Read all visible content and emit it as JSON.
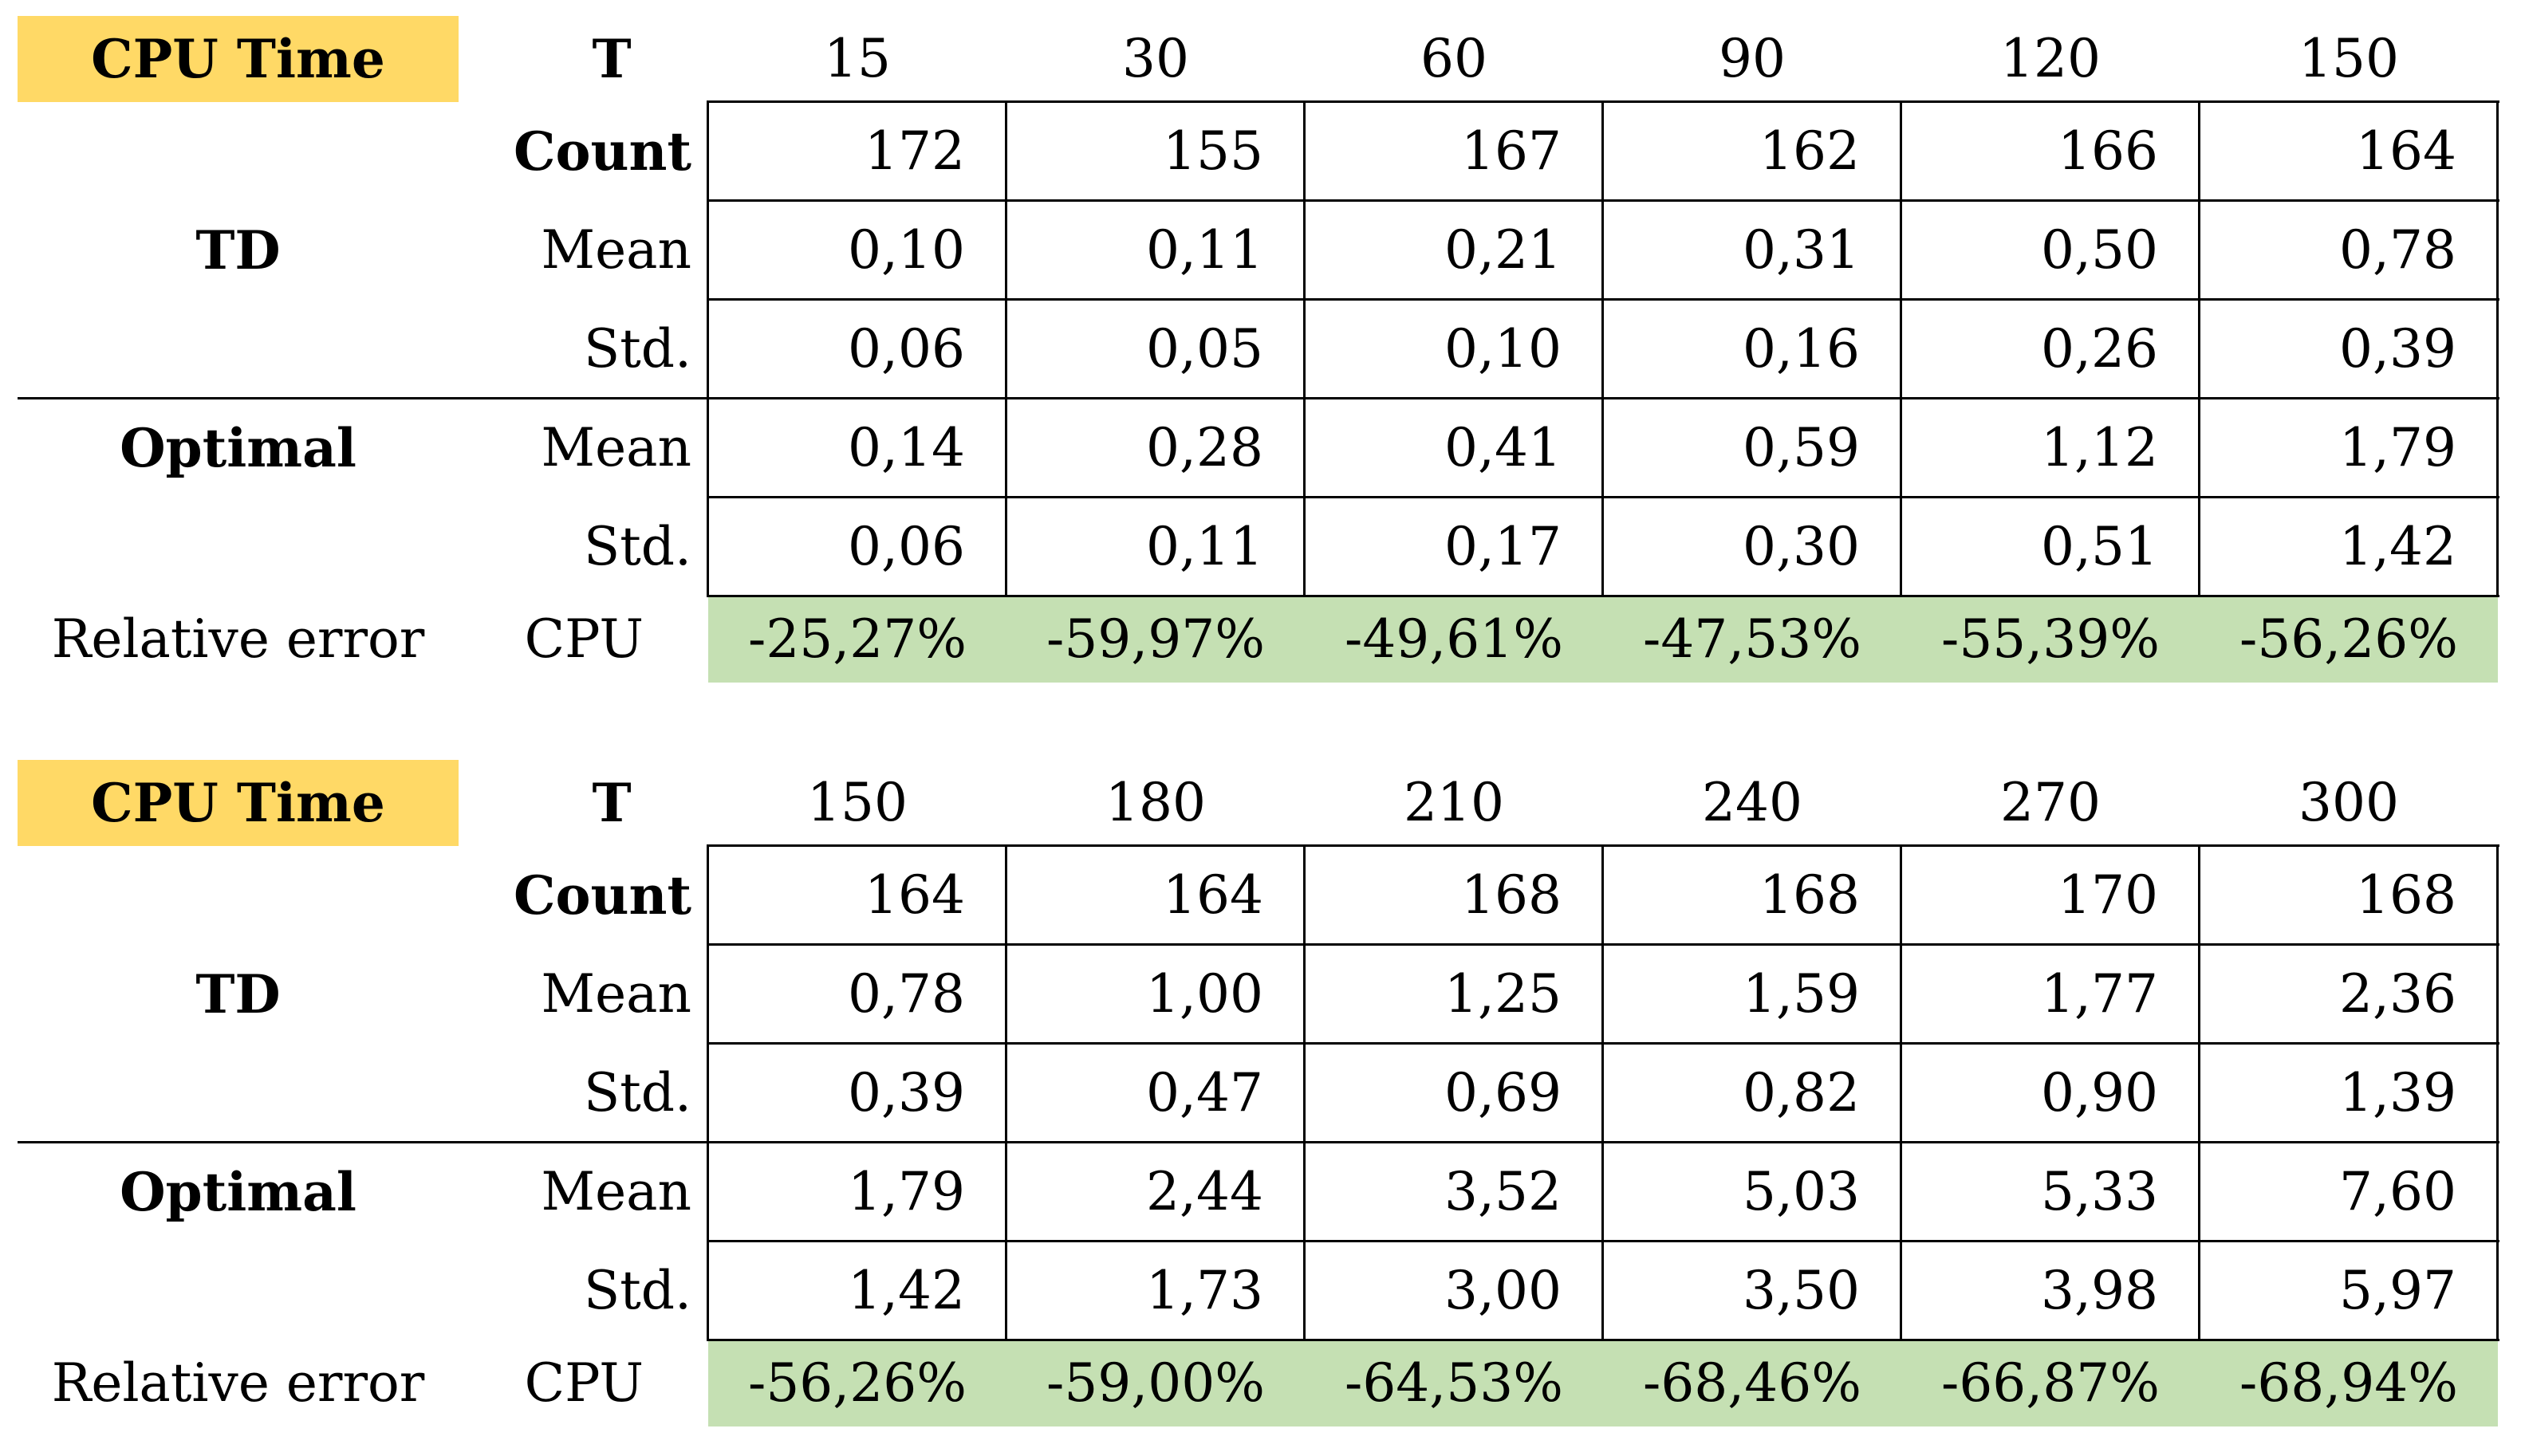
{
  "tables": [
    {
      "badge": "CPU Time",
      "t_label": "T",
      "t_values": [
        "15",
        "30",
        "60",
        "90",
        "120",
        "150"
      ],
      "td": {
        "label": "TD",
        "count_label": "Count",
        "count": [
          "172",
          "155",
          "167",
          "162",
          "166",
          "164"
        ],
        "mean_label": "Mean",
        "mean": [
          "0,10",
          "0,11",
          "0,21",
          "0,31",
          "0,50",
          "0,78"
        ],
        "std_label": "Std.",
        "std": [
          "0,06",
          "0,05",
          "0,10",
          "0,16",
          "0,26",
          "0,39"
        ]
      },
      "optimal": {
        "label": "Optimal",
        "mean_label": "Mean",
        "mean": [
          "0,14",
          "0,28",
          "0,41",
          "0,59",
          "1,12",
          "1,79"
        ],
        "std_label": "Std.",
        "std": [
          "0,06",
          "0,11",
          "0,17",
          "0,30",
          "0,51",
          "1,42"
        ]
      },
      "relative_error": {
        "label": "Relative error",
        "cpu_label": "CPU",
        "values": [
          "-25,27%",
          "-59,97%",
          "-49,61%",
          "-47,53%",
          "-55,39%",
          "-56,26%"
        ]
      }
    },
    {
      "badge": "CPU Time",
      "t_label": "T",
      "t_values": [
        "150",
        "180",
        "210",
        "240",
        "270",
        "300"
      ],
      "td": {
        "label": "TD",
        "count_label": "Count",
        "count": [
          "164",
          "164",
          "168",
          "168",
          "170",
          "168"
        ],
        "mean_label": "Mean",
        "mean": [
          "0,78",
          "1,00",
          "1,25",
          "1,59",
          "1,77",
          "2,36"
        ],
        "std_label": "Std.",
        "std": [
          "0,39",
          "0,47",
          "0,69",
          "0,82",
          "0,90",
          "1,39"
        ]
      },
      "optimal": {
        "label": "Optimal",
        "mean_label": "Mean",
        "mean": [
          "1,79",
          "2,44",
          "3,52",
          "5,03",
          "5,33",
          "7,60"
        ],
        "std_label": "Std.",
        "std": [
          "1,42",
          "1,73",
          "3,00",
          "3,50",
          "3,98",
          "5,97"
        ]
      },
      "relative_error": {
        "label": "Relative error",
        "cpu_label": "CPU",
        "values": [
          "-56,26%",
          "-59,00%",
          "-64,53%",
          "-68,46%",
          "-66,87%",
          "-68,94%"
        ]
      }
    }
  ],
  "colors": {
    "badge_fill": "#FFD966",
    "relative_error_fill": "#C5E0B3"
  }
}
